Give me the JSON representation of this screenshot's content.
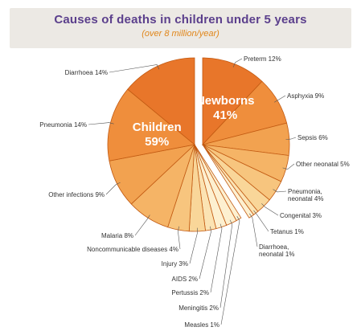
{
  "title": "Causes of deaths in children under 5 years",
  "subtitle": "(over 8 million/year)",
  "chart_data": {
    "type": "pie",
    "groups": [
      {
        "name": "Newborns",
        "value": 41,
        "label": "41%"
      },
      {
        "name": "Children",
        "value": 59,
        "label": "59%"
      }
    ],
    "slices": [
      {
        "name": "Preterm",
        "value": 12,
        "label": "Preterm 12%",
        "group": "Newborns"
      },
      {
        "name": "Asphyxia",
        "value": 9,
        "label": "Asphyxia 9%",
        "group": "Newborns"
      },
      {
        "name": "Sepsis",
        "value": 6,
        "label": "Sepsis 6%",
        "group": "Newborns"
      },
      {
        "name": "Other neonatal",
        "value": 5,
        "label": "Other neonatal 5%",
        "group": "Newborns"
      },
      {
        "name": "Pneumonia, neonatal",
        "value": 4,
        "label": "Pneumonia, neonatal 4%",
        "group": "Newborns"
      },
      {
        "name": "Congenital",
        "value": 3,
        "label": "Congenital 3%",
        "group": "Newborns"
      },
      {
        "name": "Tetanus",
        "value": 1,
        "label": "Tetanus 1%",
        "group": "Newborns"
      },
      {
        "name": "Diarrhoea, neonatal",
        "value": 1,
        "label": "Diarrhoea, neonatal 1%",
        "group": "Newborns"
      },
      {
        "name": "Measles",
        "value": 1,
        "label": "Measles 1%",
        "group": "Children"
      },
      {
        "name": "Meningitis",
        "value": 2,
        "label": "Meningitis 2%",
        "group": "Children"
      },
      {
        "name": "Pertussis",
        "value": 2,
        "label": "Pertussis 2%",
        "group": "Children"
      },
      {
        "name": "AIDS",
        "value": 2,
        "label": "AIDS 2%",
        "group": "Children"
      },
      {
        "name": "Injury",
        "value": 3,
        "label": "Injury 3%",
        "group": "Children"
      },
      {
        "name": "Noncommunicable diseases",
        "value": 4,
        "label": "Noncommunicable diseases 4%",
        "group": "Children"
      },
      {
        "name": "Malaria",
        "value": 8,
        "label": "Malaria 8%",
        "group": "Children"
      },
      {
        "name": "Other infections",
        "value": 9,
        "label": "Other infections 9%",
        "group": "Children"
      },
      {
        "name": "Pneumonia",
        "value": 14,
        "label": "Pneumonia 14%",
        "group": "Children"
      },
      {
        "name": "Diarrhoea",
        "value": 14,
        "label": "Diarrhoea 14%",
        "group": "Children"
      }
    ],
    "colors": [
      "#e8762a",
      "#ef8e3c",
      "#f2a250",
      "#f5b466",
      "#f7c57e",
      "#f9d699",
      "#fbe3b3",
      "#fdf0d0"
    ]
  }
}
